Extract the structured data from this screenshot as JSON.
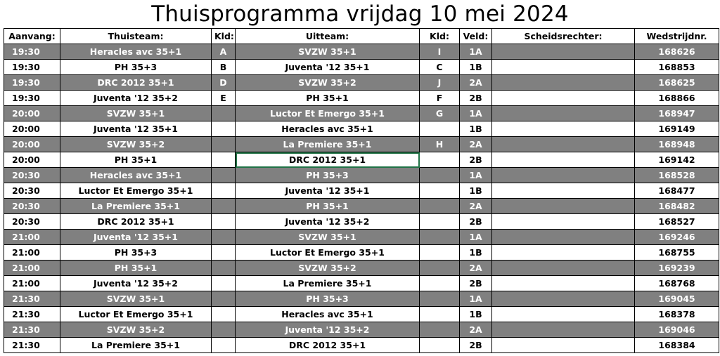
{
  "title": "Thuisprogramma vrijdag 10 mei 2024",
  "columns": {
    "aanvang": "Aanvang:",
    "thuisteam": "Thuisteam:",
    "kld_home": "Kld:",
    "uitteam": "Uitteam:",
    "kld_away": "Kld:",
    "veld": "Veld:",
    "scheidsrechter": "Scheidsrechter:",
    "wedstrijdnr": "Wedstrijdnr."
  },
  "rows": [
    {
      "time": "19:30",
      "home": "Heracles avc 35+1",
      "kld_home": "A",
      "away": "SVZW 35+1",
      "kld_away": "I",
      "veld": "1A",
      "referee": "",
      "match_no": "168626"
    },
    {
      "time": "19:30",
      "home": "PH 35+3",
      "kld_home": "B",
      "away": "Juventa '12 35+1",
      "kld_away": "C",
      "veld": "1B",
      "referee": "",
      "match_no": "168853"
    },
    {
      "time": "19:30",
      "home": "DRC 2012 35+1",
      "kld_home": "D",
      "away": "SVZW 35+2",
      "kld_away": "J",
      "veld": "2A",
      "referee": "",
      "match_no": "168625"
    },
    {
      "time": "19:30",
      "home": "Juventa '12 35+2",
      "kld_home": "E",
      "away": "PH 35+1",
      "kld_away": "F",
      "veld": "2B",
      "referee": "",
      "match_no": "168866"
    },
    {
      "time": "20:00",
      "home": "SVZW 35+1",
      "kld_home": "",
      "away": "Luctor Et Emergo 35+1",
      "kld_away": "G",
      "veld": "1A",
      "referee": "",
      "match_no": "168947"
    },
    {
      "time": "20:00",
      "home": "Juventa '12 35+1",
      "kld_home": "",
      "away": "Heracles avc 35+1",
      "kld_away": "",
      "veld": "1B",
      "referee": "",
      "match_no": "169149"
    },
    {
      "time": "20:00",
      "home": "SVZW 35+2",
      "kld_home": "",
      "away": "La Premiere 35+1",
      "kld_away": "H",
      "veld": "2A",
      "referee": "",
      "match_no": "168948"
    },
    {
      "time": "20:00",
      "home": "PH 35+1",
      "kld_home": "",
      "away": "DRC 2012 35+1",
      "kld_away": "",
      "veld": "2B",
      "referee": "",
      "match_no": "169142"
    },
    {
      "time": "20:30",
      "home": "Heracles avc 35+1",
      "kld_home": "",
      "away": "PH 35+3",
      "kld_away": "",
      "veld": "1A",
      "referee": "",
      "match_no": "168528"
    },
    {
      "time": "20:30",
      "home": "Luctor Et Emergo 35+1",
      "kld_home": "",
      "away": "Juventa '12 35+1",
      "kld_away": "",
      "veld": "1B",
      "referee": "",
      "match_no": "168477"
    },
    {
      "time": "20:30",
      "home": "La Premiere 35+1",
      "kld_home": "",
      "away": "PH 35+1",
      "kld_away": "",
      "veld": "2A",
      "referee": "",
      "match_no": "168482"
    },
    {
      "time": "20:30",
      "home": "DRC 2012 35+1",
      "kld_home": "",
      "away": "Juventa '12 35+2",
      "kld_away": "",
      "veld": "2B",
      "referee": "",
      "match_no": "168527"
    },
    {
      "time": "21:00",
      "home": "Juventa '12 35+1",
      "kld_home": "",
      "away": "SVZW 35+1",
      "kld_away": "",
      "veld": "1A",
      "referee": "",
      "match_no": "169246"
    },
    {
      "time": "21:00",
      "home": "PH 35+3",
      "kld_home": "",
      "away": "Luctor Et Emergo 35+1",
      "kld_away": "",
      "veld": "1B",
      "referee": "",
      "match_no": "168755"
    },
    {
      "time": "21:00",
      "home": "PH 35+1",
      "kld_home": "",
      "away": "SVZW 35+2",
      "kld_away": "",
      "veld": "2A",
      "referee": "",
      "match_no": "169239"
    },
    {
      "time": "21:00",
      "home": "Juventa '12 35+2",
      "kld_home": "",
      "away": "La Premiere 35+1",
      "kld_away": "",
      "veld": "2B",
      "referee": "",
      "match_no": "168768"
    },
    {
      "time": "21:30",
      "home": "SVZW 35+1",
      "kld_home": "",
      "away": "PH 35+3",
      "kld_away": "",
      "veld": "1A",
      "referee": "",
      "match_no": "169045"
    },
    {
      "time": "21:30",
      "home": "Luctor Et Emergo 35+1",
      "kld_home": "",
      "away": "Heracles avc 35+1",
      "kld_away": "",
      "veld": "1B",
      "referee": "",
      "match_no": "168378"
    },
    {
      "time": "21:30",
      "home": "SVZW 35+2",
      "kld_home": "",
      "away": "Juventa '12 35+2",
      "kld_away": "",
      "veld": "2A",
      "referee": "",
      "match_no": "169046"
    },
    {
      "time": "21:30",
      "home": "La Premiere 35+1",
      "kld_home": "",
      "away": "DRC 2012 35+1",
      "kld_away": "",
      "veld": "2B",
      "referee": "",
      "match_no": "168384"
    }
  ],
  "colors": {
    "shaded_row": "#808080",
    "selection_border": "#217346"
  }
}
